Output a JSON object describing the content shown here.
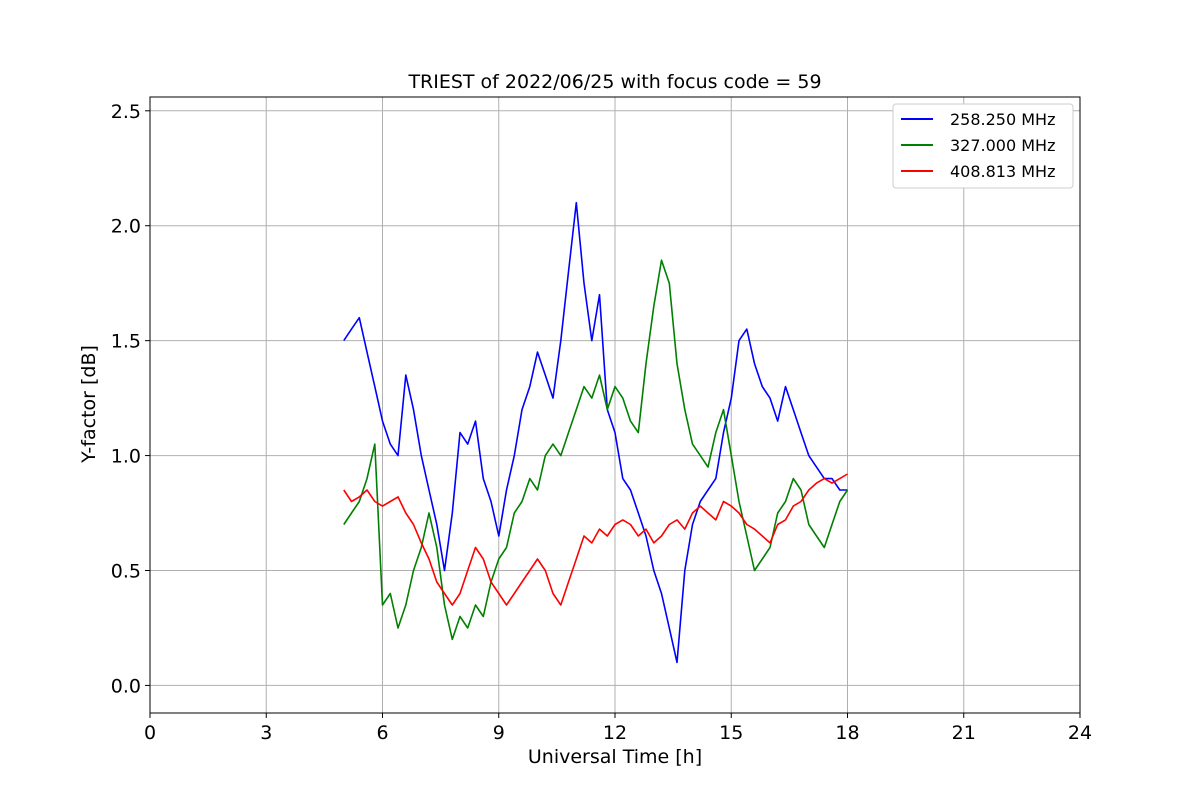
{
  "chart_data": {
    "type": "line",
    "title": "TRIEST of 2022/06/25 with focus code = 59",
    "xlabel": "Universal Time [h]",
    "ylabel": "Y-factor [dB]",
    "xlim": [
      0,
      24
    ],
    "ylim": [
      -0.12,
      2.56
    ],
    "x_ticks": [
      0,
      3,
      6,
      9,
      12,
      15,
      18,
      21,
      24
    ],
    "x_tick_labels": [
      "0",
      "3",
      "6",
      "9",
      "12",
      "15",
      "18",
      "21",
      "24"
    ],
    "y_ticks": [
      0.0,
      0.5,
      1.0,
      1.5,
      2.0,
      2.5
    ],
    "y_tick_labels": [
      "0.0",
      "0.5",
      "1.0",
      "1.5",
      "2.0",
      "2.5"
    ],
    "grid": true,
    "legend_position": "top-right",
    "series": [
      {
        "name": "258.250 MHz",
        "color": "#0000ff",
        "x": [
          5.0,
          5.2,
          5.4,
          5.6,
          5.8,
          6.0,
          6.2,
          6.4,
          6.6,
          6.8,
          7.0,
          7.2,
          7.4,
          7.6,
          7.8,
          8.0,
          8.2,
          8.4,
          8.6,
          8.8,
          9.0,
          9.2,
          9.4,
          9.6,
          9.8,
          10.0,
          10.2,
          10.4,
          10.6,
          10.8,
          11.0,
          11.2,
          11.4,
          11.6,
          11.8,
          12.0,
          12.2,
          12.4,
          12.6,
          12.8,
          13.0,
          13.2,
          13.4,
          13.6,
          13.8,
          14.0,
          14.2,
          14.4,
          14.6,
          14.8,
          15.0,
          15.2,
          15.4,
          15.6,
          15.8,
          16.0,
          16.2,
          16.4,
          16.6,
          16.8,
          17.0,
          17.2,
          17.4,
          17.6,
          17.8,
          18.0
        ],
        "y": [
          1.5,
          1.55,
          1.6,
          1.45,
          1.3,
          1.15,
          1.05,
          1.0,
          1.35,
          1.2,
          1.0,
          0.85,
          0.7,
          0.5,
          0.75,
          1.1,
          1.05,
          1.15,
          0.9,
          0.8,
          0.65,
          0.85,
          1.0,
          1.2,
          1.3,
          1.45,
          1.35,
          1.25,
          1.5,
          1.8,
          2.1,
          1.75,
          1.5,
          1.7,
          1.2,
          1.1,
          0.9,
          0.85,
          0.75,
          0.65,
          0.5,
          0.4,
          0.25,
          0.1,
          0.5,
          0.7,
          0.8,
          0.85,
          0.9,
          1.1,
          1.25,
          1.5,
          1.55,
          1.4,
          1.3,
          1.25,
          1.15,
          1.3,
          1.2,
          1.1,
          1.0,
          0.95,
          0.9,
          0.9,
          0.85,
          0.85
        ]
      },
      {
        "name": "327.000 MHz",
        "color": "#008000",
        "x": [
          5.0,
          5.2,
          5.4,
          5.6,
          5.8,
          6.0,
          6.2,
          6.4,
          6.6,
          6.8,
          7.0,
          7.2,
          7.4,
          7.6,
          7.8,
          8.0,
          8.2,
          8.4,
          8.6,
          8.8,
          9.0,
          9.2,
          9.4,
          9.6,
          9.8,
          10.0,
          10.2,
          10.4,
          10.6,
          10.8,
          11.0,
          11.2,
          11.4,
          11.6,
          11.8,
          12.0,
          12.2,
          12.4,
          12.6,
          12.8,
          13.0,
          13.2,
          13.4,
          13.6,
          13.8,
          14.0,
          14.2,
          14.4,
          14.6,
          14.8,
          15.0,
          15.2,
          15.4,
          15.6,
          15.8,
          16.0,
          16.2,
          16.4,
          16.6,
          16.8,
          17.0,
          17.2,
          17.4,
          17.6,
          17.8,
          18.0
        ],
        "y": [
          0.7,
          0.75,
          0.8,
          0.9,
          1.05,
          0.35,
          0.4,
          0.25,
          0.35,
          0.5,
          0.6,
          0.75,
          0.6,
          0.35,
          0.2,
          0.3,
          0.25,
          0.35,
          0.3,
          0.45,
          0.55,
          0.6,
          0.75,
          0.8,
          0.9,
          0.85,
          1.0,
          1.05,
          1.0,
          1.1,
          1.2,
          1.3,
          1.25,
          1.35,
          1.2,
          1.3,
          1.25,
          1.15,
          1.1,
          1.4,
          1.65,
          1.85,
          1.75,
          1.4,
          1.2,
          1.05,
          1.0,
          0.95,
          1.1,
          1.2,
          1.0,
          0.8,
          0.65,
          0.5,
          0.55,
          0.6,
          0.75,
          0.8,
          0.9,
          0.85,
          0.7,
          0.65,
          0.6,
          0.7,
          0.8,
          0.85
        ]
      },
      {
        "name": "408.813 MHz",
        "color": "#ff0000",
        "x": [
          5.0,
          5.2,
          5.4,
          5.6,
          5.8,
          6.0,
          6.2,
          6.4,
          6.6,
          6.8,
          7.0,
          7.2,
          7.4,
          7.6,
          7.8,
          8.0,
          8.2,
          8.4,
          8.6,
          8.8,
          9.0,
          9.2,
          9.4,
          9.6,
          9.8,
          10.0,
          10.2,
          10.4,
          10.6,
          10.8,
          11.0,
          11.2,
          11.4,
          11.6,
          11.8,
          12.0,
          12.2,
          12.4,
          12.6,
          12.8,
          13.0,
          13.2,
          13.4,
          13.6,
          13.8,
          14.0,
          14.2,
          14.4,
          14.6,
          14.8,
          15.0,
          15.2,
          15.4,
          15.6,
          15.8,
          16.0,
          16.2,
          16.4,
          16.6,
          16.8,
          17.0,
          17.2,
          17.4,
          17.6,
          17.8,
          18.0
        ],
        "y": [
          0.85,
          0.8,
          0.82,
          0.85,
          0.8,
          0.78,
          0.8,
          0.82,
          0.75,
          0.7,
          0.62,
          0.55,
          0.45,
          0.4,
          0.35,
          0.4,
          0.5,
          0.6,
          0.55,
          0.45,
          0.4,
          0.35,
          0.4,
          0.45,
          0.5,
          0.55,
          0.5,
          0.4,
          0.35,
          0.45,
          0.55,
          0.65,
          0.62,
          0.68,
          0.65,
          0.7,
          0.72,
          0.7,
          0.65,
          0.68,
          0.62,
          0.65,
          0.7,
          0.72,
          0.68,
          0.75,
          0.78,
          0.75,
          0.72,
          0.8,
          0.78,
          0.75,
          0.7,
          0.68,
          0.65,
          0.62,
          0.7,
          0.72,
          0.78,
          0.8,
          0.85,
          0.88,
          0.9,
          0.88,
          0.9,
          0.92
        ]
      }
    ]
  }
}
